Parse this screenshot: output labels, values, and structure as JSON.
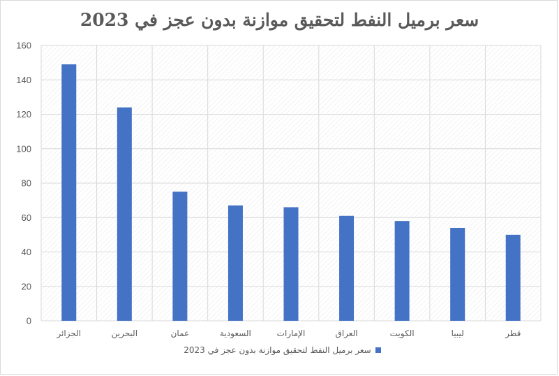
{
  "chart_data": {
    "type": "bar",
    "title": "سعر برميل النفط لتحقيق موازنة بدون عجز في 2023",
    "categories": [
      "الجزائر",
      "البحرين",
      "عمان",
      "السعودية",
      "الإمارات",
      "العراق",
      "الكويت",
      "ليبيا",
      "قطر"
    ],
    "series": [
      {
        "name": "سعر برميل النفط لتحقيق موازنة بدون عجز في 2023",
        "values": [
          149,
          124,
          75,
          67,
          66,
          61,
          58,
          54,
          50
        ],
        "color": "#4472c4"
      }
    ],
    "ylim": [
      0,
      160
    ],
    "yticks": [
      0,
      20,
      40,
      60,
      80,
      100,
      120,
      140,
      160
    ],
    "grid": true,
    "legend_position": "bottom"
  }
}
